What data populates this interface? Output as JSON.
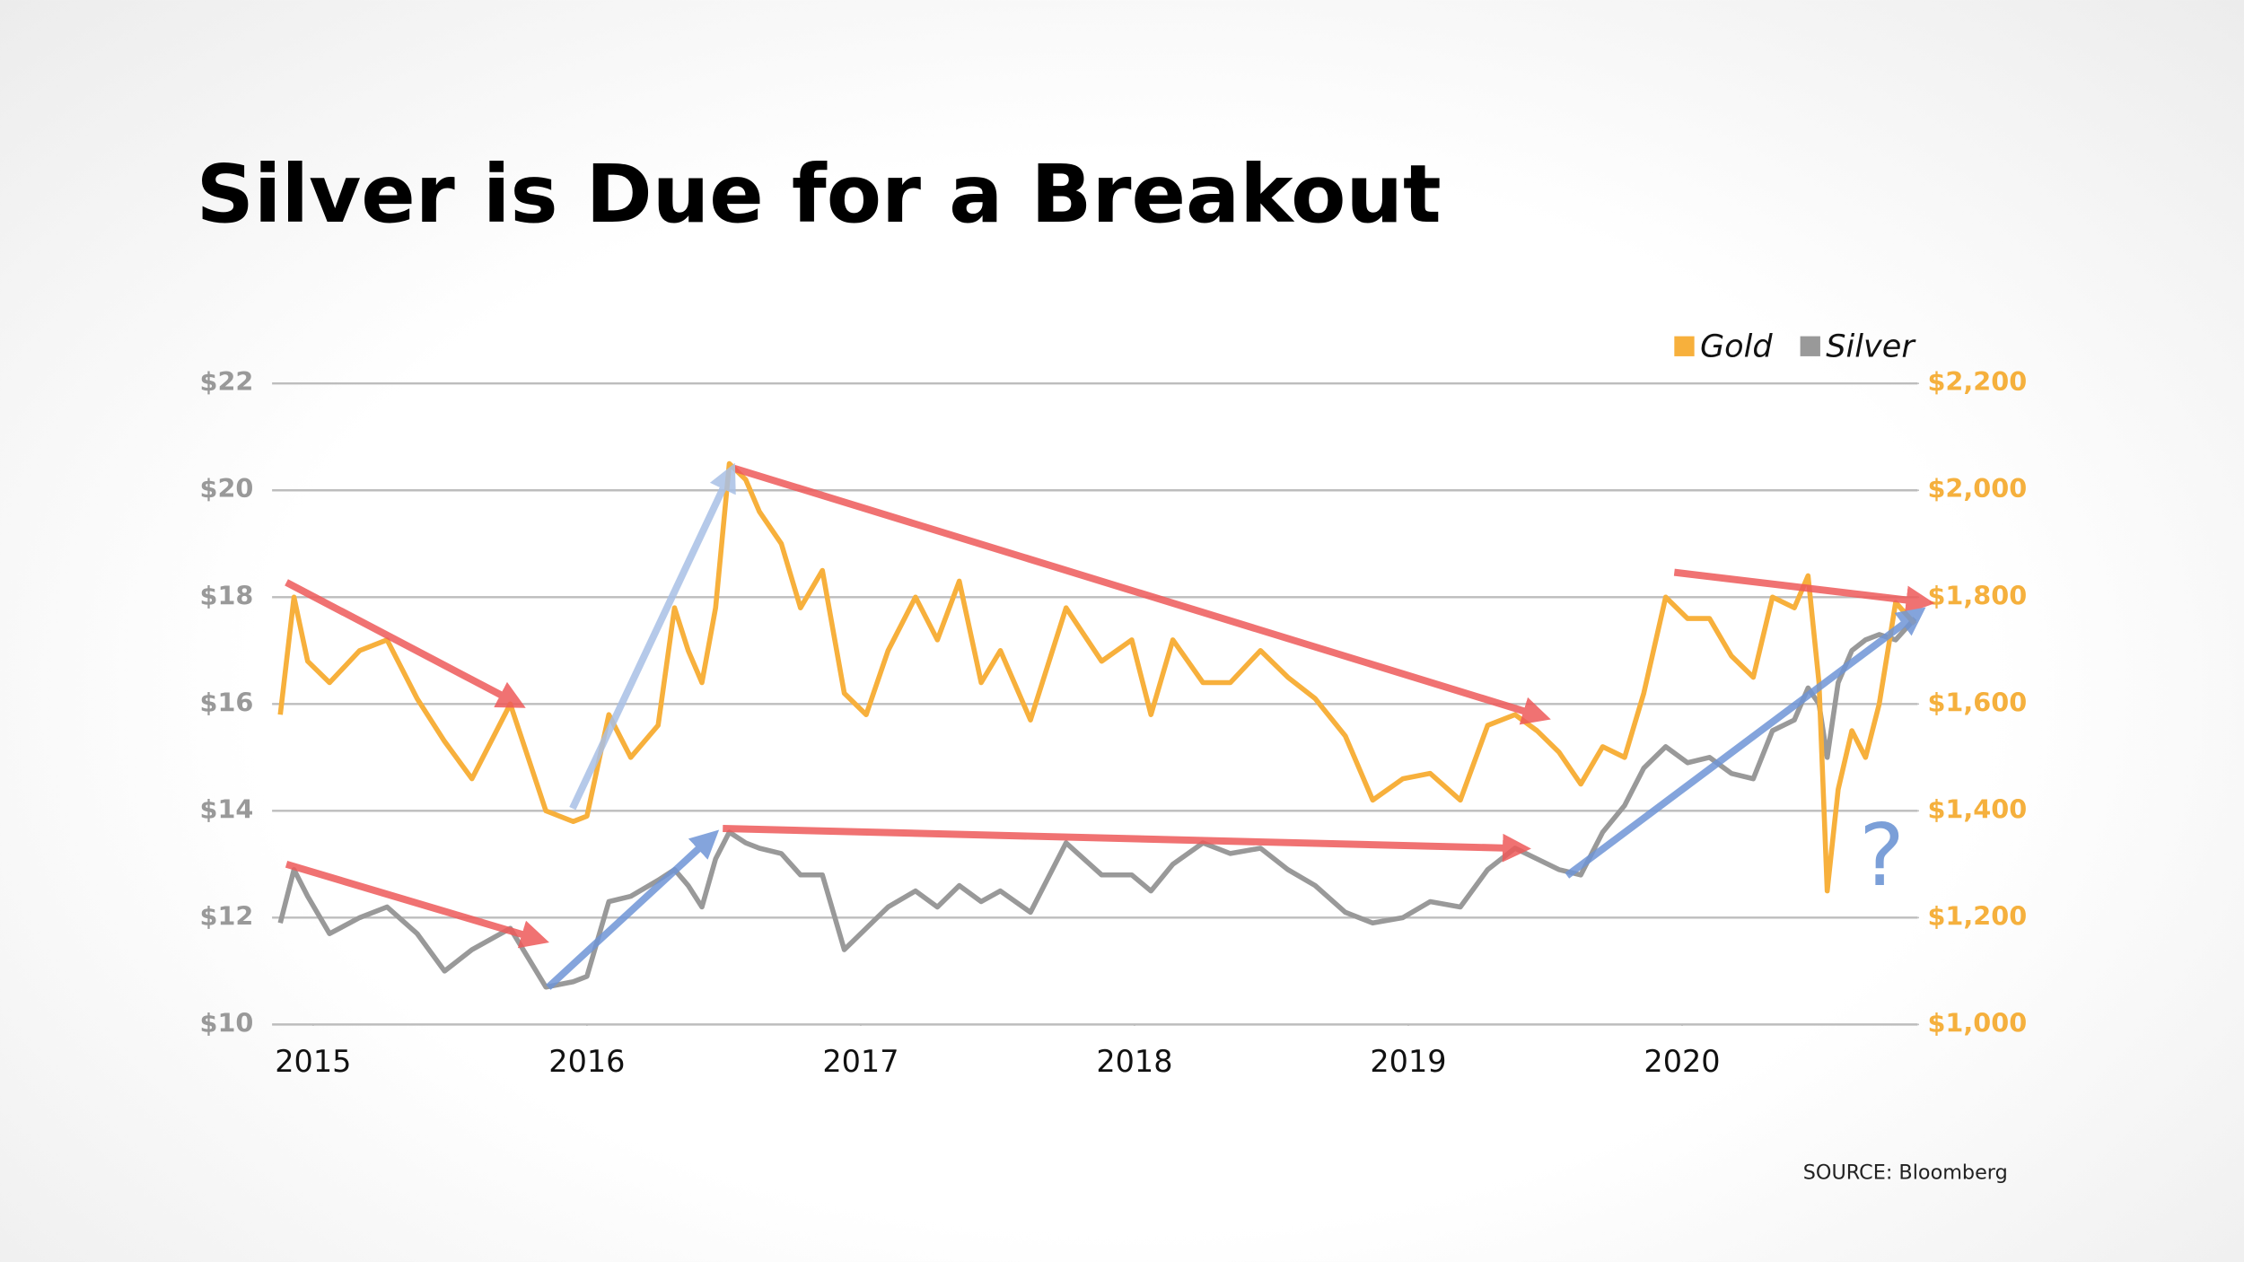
{
  "chart_data": {
    "type": "line",
    "title": "Silver is Due for a Breakout",
    "source": "SOURCE: Bloomberg",
    "annotations": [
      "?"
    ],
    "x": [
      2014.88,
      2014.93,
      2014.98,
      2015.06,
      2015.17,
      2015.27,
      2015.38,
      2015.48,
      2015.58,
      2015.72,
      2015.85,
      2015.95,
      2016.0,
      2016.08,
      2016.16,
      2016.26,
      2016.32,
      2016.37,
      2016.42,
      2016.47,
      2016.52,
      2016.58,
      2016.63,
      2016.71,
      2016.78,
      2016.86,
      2016.94,
      2017.02,
      2017.1,
      2017.2,
      2017.28,
      2017.36,
      2017.44,
      2017.51,
      2017.62,
      2017.75,
      2017.88,
      2017.99,
      2018.06,
      2018.14,
      2018.25,
      2018.35,
      2018.46,
      2018.56,
      2018.66,
      2018.77,
      2018.87,
      2018.98,
      2019.08,
      2019.19,
      2019.29,
      2019.39,
      2019.47,
      2019.55,
      2019.63,
      2019.71,
      2019.79,
      2019.86,
      2019.94,
      2020.02,
      2020.1,
      2020.18,
      2020.26,
      2020.33,
      2020.41,
      2020.46,
      2020.5,
      2020.53,
      2020.57,
      2020.62,
      2020.67,
      2020.72,
      2020.78,
      2020.85
    ],
    "series": [
      {
        "name": "Gold",
        "color": "#f7b03c",
        "axis": "y2",
        "values": [
          1580,
          1800,
          1680,
          1640,
          1700,
          1720,
          1610,
          1530,
          1460,
          1600,
          1400,
          1380,
          1390,
          1580,
          1500,
          1560,
          1780,
          1700,
          1640,
          1780,
          2050,
          2020,
          1960,
          1900,
          1780,
          1850,
          1620,
          1580,
          1700,
          1800,
          1720,
          1830,
          1640,
          1700,
          1570,
          1780,
          1680,
          1720,
          1580,
          1720,
          1640,
          1640,
          1700,
          1650,
          1610,
          1540,
          1420,
          1460,
          1470,
          1420,
          1560,
          1580,
          1550,
          1510,
          1450,
          1520,
          1500,
          1620,
          1800,
          1760,
          1760,
          1690,
          1650,
          1800,
          1780,
          1840,
          1640,
          1250,
          1440,
          1550,
          1500,
          1600,
          1790,
          1750
        ]
      },
      {
        "name": "Silver",
        "color": "#999999",
        "axis": "y",
        "values": [
          11.9,
          12.9,
          12.4,
          11.7,
          12.0,
          12.2,
          11.7,
          11.0,
          11.4,
          11.8,
          10.7,
          10.8,
          10.9,
          12.3,
          12.4,
          12.7,
          12.9,
          12.6,
          12.2,
          13.1,
          13.6,
          13.4,
          13.3,
          13.2,
          12.8,
          12.8,
          11.4,
          11.8,
          12.2,
          12.5,
          12.2,
          12.6,
          12.3,
          12.5,
          12.1,
          13.4,
          12.8,
          12.8,
          12.5,
          13.0,
          13.4,
          13.2,
          13.3,
          12.9,
          12.6,
          12.1,
          11.9,
          12.0,
          12.3,
          12.2,
          12.9,
          13.3,
          13.1,
          12.9,
          12.8,
          13.6,
          14.1,
          14.8,
          15.2,
          14.9,
          15.0,
          14.7,
          14.6,
          15.5,
          15.7,
          16.3,
          16.0,
          15.0,
          16.4,
          17.0,
          17.2,
          17.3,
          17.2,
          17.6
        ]
      }
    ],
    "xlim": [
      2014.85,
      2020.86
    ],
    "xticks": [
      2015,
      2016,
      2017,
      2018,
      2019,
      2020
    ],
    "ylim": [
      10,
      22
    ],
    "yticks": [
      {
        "value": 10,
        "label": "$10"
      },
      {
        "value": 12,
        "label": "$12"
      },
      {
        "value": 14,
        "label": "$14"
      },
      {
        "value": 16,
        "label": "$16"
      },
      {
        "value": 18,
        "label": "$18"
      },
      {
        "value": 20,
        "label": "$20"
      },
      {
        "value": 22,
        "label": "$22"
      }
    ],
    "y2lim": [
      1000,
      2200
    ],
    "y2ticks": [
      {
        "value": 1000,
        "label": "$1,000"
      },
      {
        "value": 1200,
        "label": "$1,200"
      },
      {
        "value": 1400,
        "label": "$1,400"
      },
      {
        "value": 1600,
        "label": "$1,600"
      },
      {
        "value": 1800,
        "label": "$1,800"
      },
      {
        "value": 2000,
        "label": "$2,000"
      },
      {
        "value": 2200,
        "label": "$2,200"
      }
    ],
    "grid": true,
    "legend": "top-right"
  }
}
